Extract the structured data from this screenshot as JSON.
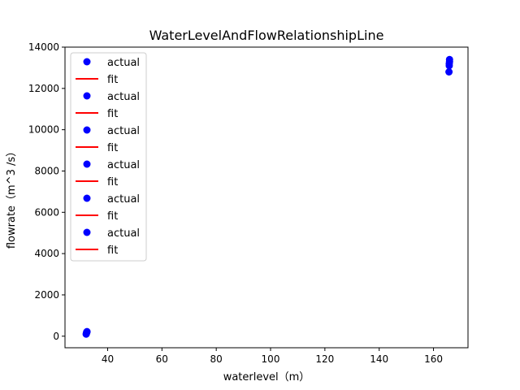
{
  "chart_data": {
    "type": "scatter",
    "title": "WaterLevelAndFlowRelationshipLine",
    "xlabel": "waterlevel（m）",
    "ylabel": "flowrate（m^3 /s）",
    "xlim": [
      24.3,
      172.7
    ],
    "ylim": [
      -560,
      14000
    ],
    "xticks": [
      40,
      60,
      80,
      100,
      120,
      140,
      160
    ],
    "yticks": [
      0,
      2000,
      4000,
      6000,
      8000,
      10000,
      12000,
      14000
    ],
    "grid": false,
    "legend_position": "upper-left",
    "legend": [
      "actual",
      "fit",
      "actual",
      "fit",
      "actual",
      "fit",
      "actual",
      "fit",
      "actual",
      "fit",
      "actual",
      "fit"
    ],
    "colors": {
      "actual": "#0000ff",
      "fit": "#ff0000"
    },
    "series": [
      {
        "name": "actual",
        "x": [
          32.1,
          32.2,
          32.3,
          32.3,
          32.4,
          165.7,
          165.8,
          165.8,
          165.9,
          165.9
        ],
        "y": [
          100,
          150,
          170,
          200,
          220,
          12800,
          13100,
          13200,
          13300,
          13400
        ]
      },
      {
        "name": "fit",
        "x": [
          32.1,
          32.4,
          165.7,
          165.9
        ],
        "y": [
          100,
          220,
          12900,
          13400
        ]
      }
    ]
  }
}
